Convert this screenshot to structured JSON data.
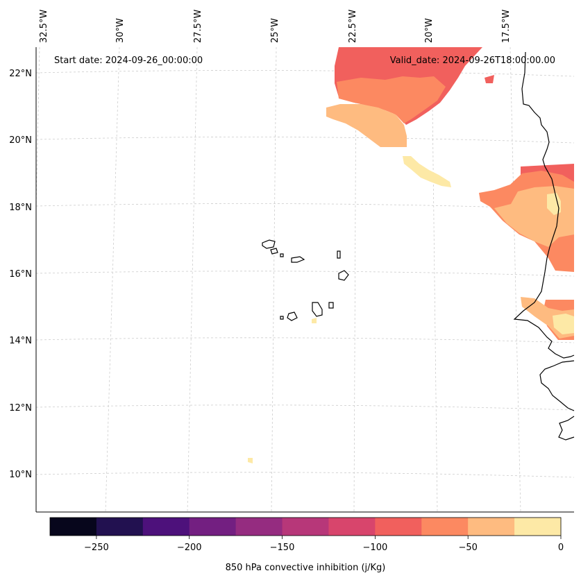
{
  "header": {
    "start_date": "Start date: 2024-09-26_00:00:00",
    "valid_date": "Valid_date: 2024-09-26T18:00:00.00"
  },
  "lon_labels": [
    "32.5°W",
    "30°W",
    "27.5°W",
    "25°W",
    "22.5°W",
    "20°W",
    "17.5°W"
  ],
  "lat_labels": [
    "22°N",
    "20°N",
    "18°N",
    "16°N",
    "14°N",
    "12°N",
    "10°N"
  ],
  "colorbar": {
    "label": "850 hPa convective inhibition (j/Kg)",
    "tick_labels": [
      "−250",
      "−200",
      "−150",
      "−100",
      "−50",
      "0"
    ],
    "levels": [
      -275,
      -250,
      -225,
      -200,
      -175,
      -150,
      -125,
      -100,
      -75,
      -50,
      -25,
      0
    ],
    "colors": [
      "#07061c",
      "#221150",
      "#4d117b",
      "#731f81",
      "#952c80",
      "#b73779",
      "#d8456c",
      "#f1605d",
      "#fc8961",
      "#febb80",
      "#fde9a6"
    ]
  },
  "colors": {
    "coastline": "#000000",
    "gridline": "#cccccc",
    "frame": "#000000"
  }
}
